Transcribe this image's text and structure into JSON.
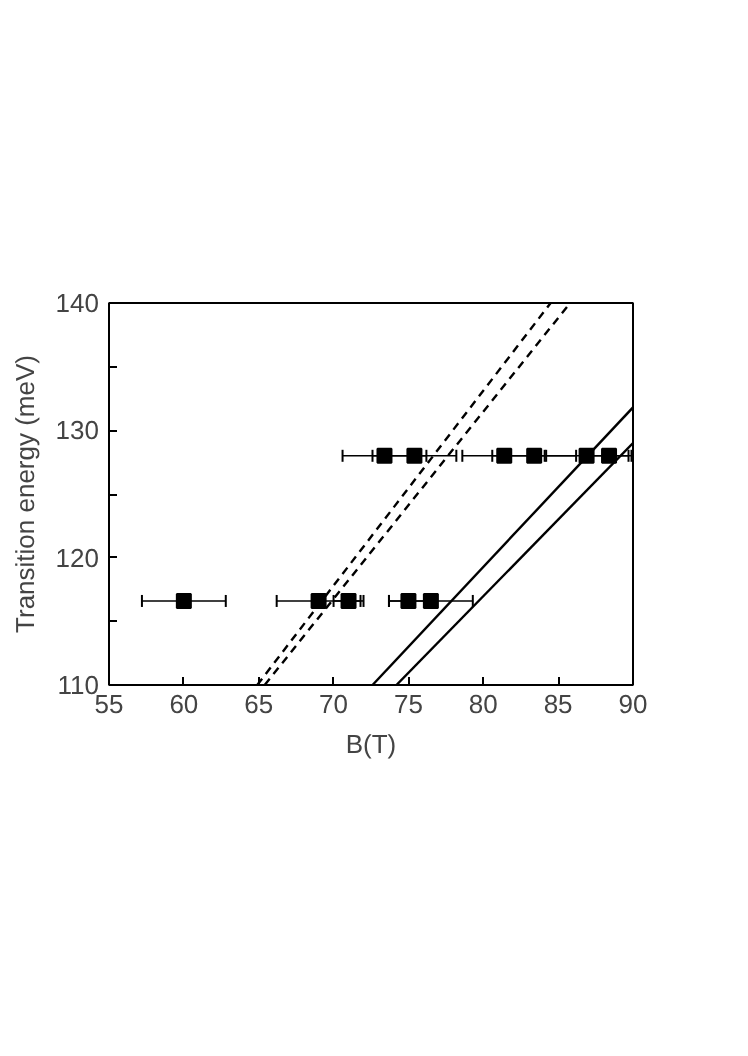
{
  "chart_data": {
    "type": "scatter",
    "xlabel": "B(T)",
    "ylabel": "Transition energy (meV)",
    "xlim": [
      55,
      90
    ],
    "ylim": [
      110,
      140
    ],
    "xticks": [
      55,
      60,
      65,
      70,
      75,
      80,
      85,
      90
    ],
    "yticks": [
      110,
      {
        "value": 115,
        "label": null
      },
      120,
      {
        "value": 125,
        "label": null
      },
      130,
      {
        "value": 135,
        "label": null
      },
      140
    ],
    "grid": false,
    "series": [
      {
        "color": "#000000",
        "marker": "square",
        "x": [
          60,
          69,
          71,
          75,
          76.5,
          73.4,
          75.4,
          81.4,
          83.4,
          86.9,
          88.4
        ],
        "values": [
          116.6,
          116.6,
          116.6,
          116.6,
          116.6,
          128,
          128,
          128,
          128,
          128,
          128
        ],
        "xerrors": [
          2.8,
          2.8,
          1,
          1.3,
          2.8,
          2.8,
          2.8,
          2.8,
          2.8,
          2.8,
          1.5
        ]
      },
      {
        "type": "line",
        "color": "#000000",
        "line_style": "dashed",
        "x": [
          64.9,
          84.5
        ],
        "values": [
          110,
          140
        ]
      },
      {
        "type": "line",
        "color": "#000000",
        "line_style": "dashed",
        "x": [
          65.4,
          85.8
        ],
        "values": [
          110,
          140
        ]
      },
      {
        "type": "line",
        "color": "#000000",
        "line_style": "solid",
        "x": [
          72.6,
          90
        ],
        "values": [
          110,
          131.8
        ]
      },
      {
        "type": "line",
        "color": "#000000",
        "line_style": "solid",
        "x": [
          74.2,
          90
        ],
        "values": [
          110,
          129
        ]
      }
    ]
  }
}
